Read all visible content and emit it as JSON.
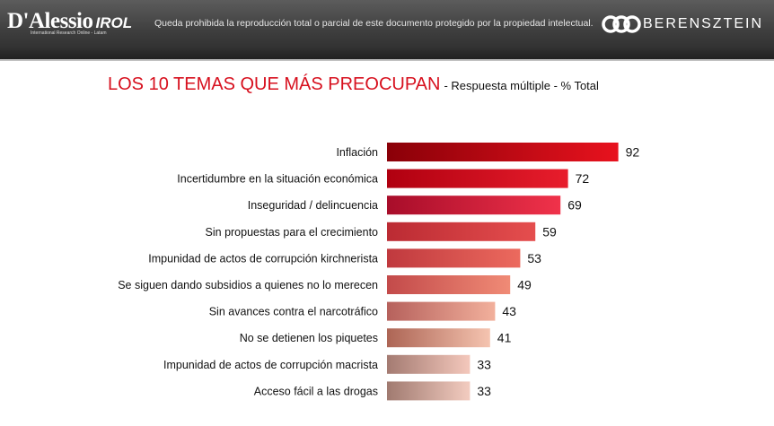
{
  "header": {
    "brand": "D'Alessio",
    "brand_suffix": "IROL",
    "brand_tagline": "International Research Online - Latam",
    "disclaimer": "Queda prohibida la reproducción total o parcial de este documento protegido por la propiedad intelectual.",
    "partner_logo": "BERENSZTEIN",
    "partner_icon": "berensztein-logo-icon"
  },
  "title": {
    "main": "LOS 10 TEMAS QUE MÁS PREOCUPAN",
    "sub": "- Respuesta múltiple - % Total",
    "main_color": "#d7101e"
  },
  "chart_data": {
    "type": "bar",
    "orientation": "horizontal",
    "categories": [
      "Inflación",
      "Incertidumbre en la situación económica",
      "Inseguridad / delincuencia",
      "Sin propuestas para el crecimiento",
      "Impunidad de actos de corrupción kirchnerista",
      "Se siguen dando subsidios a quienes no lo merecen",
      "Sin avances contra el narcotráfico",
      "No se detienen los piquetes",
      "Impunidad de actos de corrupción macrista",
      "Acceso fácil a las drogas"
    ],
    "values": [
      92,
      72,
      69,
      59,
      53,
      49,
      43,
      41,
      33,
      33
    ],
    "xlim": [
      0,
      100
    ],
    "grid": false,
    "data_labels": true,
    "bar_colors": [
      [
        "#8a0008",
        "#e8121e"
      ],
      [
        "#b00010",
        "#e81d2c"
      ],
      [
        "#a80d2a",
        "#f0324a"
      ],
      [
        "#bb2b33",
        "#e54e4e"
      ],
      [
        "#c0393e",
        "#ec6a5e"
      ],
      [
        "#c34a4a",
        "#f08b76"
      ],
      [
        "#b6615c",
        "#f2b09c"
      ],
      [
        "#ad6555",
        "#f5c4b0"
      ],
      [
        "#a47b72",
        "#f4c8bc"
      ],
      [
        "#a07a70",
        "#f3ccc0"
      ]
    ]
  }
}
